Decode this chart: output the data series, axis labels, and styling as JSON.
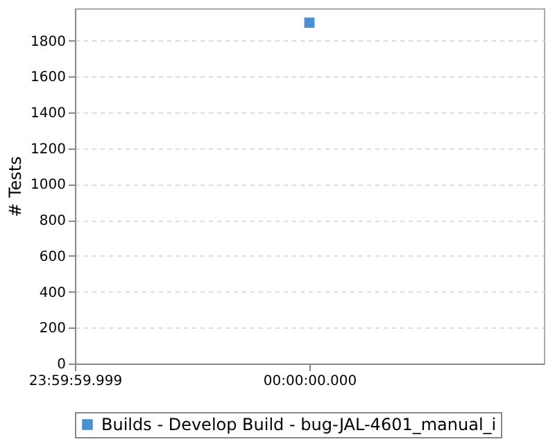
{
  "chart_data": {
    "type": "scatter",
    "ylabel": "# Tests",
    "categories": [
      "23:59:59.999",
      "00:00:00.000",
      null
    ],
    "series": [
      {
        "name": "Builds - Develop Build - bug-JAL-4601_manual_i",
        "color": "#4a8fd0",
        "values": [
          null,
          1900,
          null
        ]
      }
    ],
    "ylim": [
      0,
      1980
    ],
    "yticks": [
      0,
      200,
      400,
      600,
      800,
      1000,
      1200,
      1400,
      1600,
      1800
    ],
    "grid": "y",
    "legend": "bottom",
    "marker": "square"
  }
}
